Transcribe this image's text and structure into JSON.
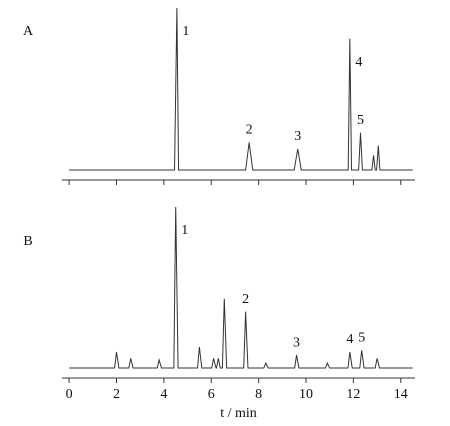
{
  "chart_data": [
    {
      "type": "line",
      "panel": "A",
      "x": [
        0,
        4.45,
        4.55,
        4.62,
        7.45,
        7.6,
        7.75,
        9.5,
        9.65,
        9.8,
        11.78,
        11.85,
        11.92,
        12.22,
        12.3,
        12.38,
        12.78,
        12.85,
        12.92,
        12.98,
        13.05,
        13.12,
        14.5
      ],
      "values": [
        0,
        0,
        100,
        0,
        0,
        17,
        0,
        0,
        13,
        0,
        0,
        81,
        0,
        0,
        23,
        0,
        0,
        9,
        0,
        0,
        15,
        0,
        0
      ],
      "color": "#333333",
      "xlim": [
        -0.3,
        14.6
      ],
      "ylim": [
        0,
        100
      ],
      "xticks": [
        0,
        2,
        4,
        6,
        8,
        10,
        12,
        14
      ],
      "show_xtick_labels": false,
      "annotations": [
        {
          "text": "1",
          "x": 4.55
        },
        {
          "text": "2",
          "x": 7.6
        },
        {
          "text": "3",
          "x": 9.65
        },
        {
          "text": "4",
          "x": 11.85
        },
        {
          "text": "5",
          "x": 12.3
        }
      ]
    },
    {
      "type": "line",
      "panel": "B",
      "x": [
        0,
        1.92,
        2.0,
        2.1,
        2.52,
        2.6,
        2.7,
        3.72,
        3.8,
        3.9,
        4.42,
        4.5,
        4.6,
        5.42,
        5.5,
        5.6,
        6.02,
        6.1,
        6.2,
        6.22,
        6.3,
        6.38,
        6.47,
        6.55,
        6.65,
        7.37,
        7.45,
        7.55,
        8.22,
        8.3,
        8.4,
        9.52,
        9.6,
        9.7,
        10.82,
        10.9,
        11.0,
        11.77,
        11.85,
        11.95,
        12.27,
        12.35,
        12.45,
        12.92,
        13.0,
        13.1,
        14.5
      ],
      "values": [
        0,
        0,
        10,
        0,
        0,
        6,
        0,
        0,
        5,
        0,
        0,
        100,
        0,
        0,
        13,
        0,
        0,
        6,
        0,
        0,
        6,
        0,
        0,
        43,
        0,
        0,
        35,
        0,
        0,
        3,
        0,
        0,
        8,
        0,
        0,
        3,
        0,
        0,
        10,
        0,
        0,
        11,
        0,
        0,
        6,
        0,
        0
      ],
      "color": "#333333",
      "xlim": [
        -0.3,
        14.6
      ],
      "ylim": [
        0,
        100
      ],
      "xticks": [
        0,
        2,
        4,
        6,
        8,
        10,
        12,
        14
      ],
      "show_xtick_labels": true,
      "xlabel": "t / min",
      "annotations": [
        {
          "text": "1",
          "x": 4.5
        },
        {
          "text": "2",
          "x": 7.45
        },
        {
          "text": "3",
          "x": 9.6
        },
        {
          "text": "4",
          "x": 11.85
        },
        {
          "text": "5",
          "x": 12.35
        }
      ]
    }
  ]
}
